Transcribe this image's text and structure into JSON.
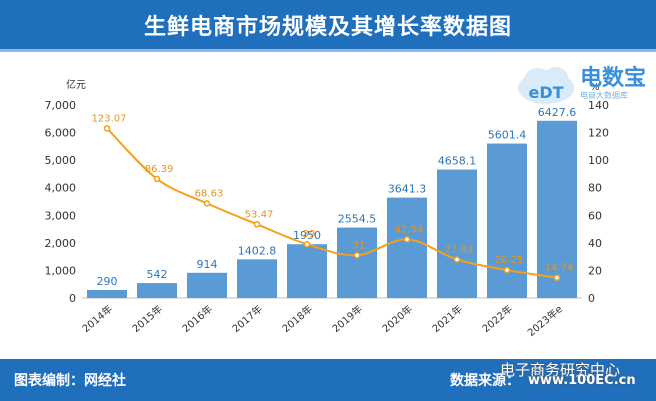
{
  "title": "生鲜电商市场规模及其增长率数据图",
  "footer": {
    "credit": "图表编制：网经社",
    "source": "数据来源：",
    "watermark_1": "电子商务研究中心",
    "watermark_2": "www.100EC.cn"
  },
  "logo": {
    "main": "电数宝",
    "sub": "电商大数据库",
    "letters": "eDT"
  },
  "chart_data": {
    "type": "bar",
    "categories": [
      "2014年",
      "2015年",
      "2016年",
      "2017年",
      "2018年",
      "2019年",
      "2020年",
      "2021年",
      "2022年",
      "2023年e"
    ],
    "series": [
      {
        "values": [
          290,
          542,
          914,
          1402.8,
          1950,
          2554.5,
          3641.3,
          4658.1,
          5601.4,
          6427.6
        ],
        "labels": [
          "290",
          "542",
          "914",
          "1402.8",
          "1950",
          "2554.5",
          "3641.3",
          "4658.1",
          "5601.4",
          "6427.6"
        ],
        "type": "bar",
        "color": "#5b9bd5"
      },
      {
        "values": [
          123.07,
          86.39,
          68.63,
          53.47,
          39,
          31,
          42.54,
          27.92,
          20.25,
          14.74
        ],
        "labels": [
          "123.07",
          "86.39",
          "68.63",
          "53.47",
          "39",
          "31",
          "42.54",
          "27.92",
          "20.25",
          "14.74"
        ],
        "type": "line",
        "color": "#f5a018",
        "axis": "right"
      }
    ],
    "ylabel": "亿元",
    "y2label": "%",
    "ylim": [
      0,
      7000
    ],
    "y2lim": [
      0,
      140
    ],
    "yticks": [
      "0",
      "1,000",
      "2,000",
      "3,000",
      "4,000",
      "5,000",
      "6,000",
      "7,000"
    ],
    "y2ticks": [
      "0",
      "20",
      "40",
      "60",
      "80",
      "100",
      "120",
      "140"
    ],
    "grid": false
  }
}
